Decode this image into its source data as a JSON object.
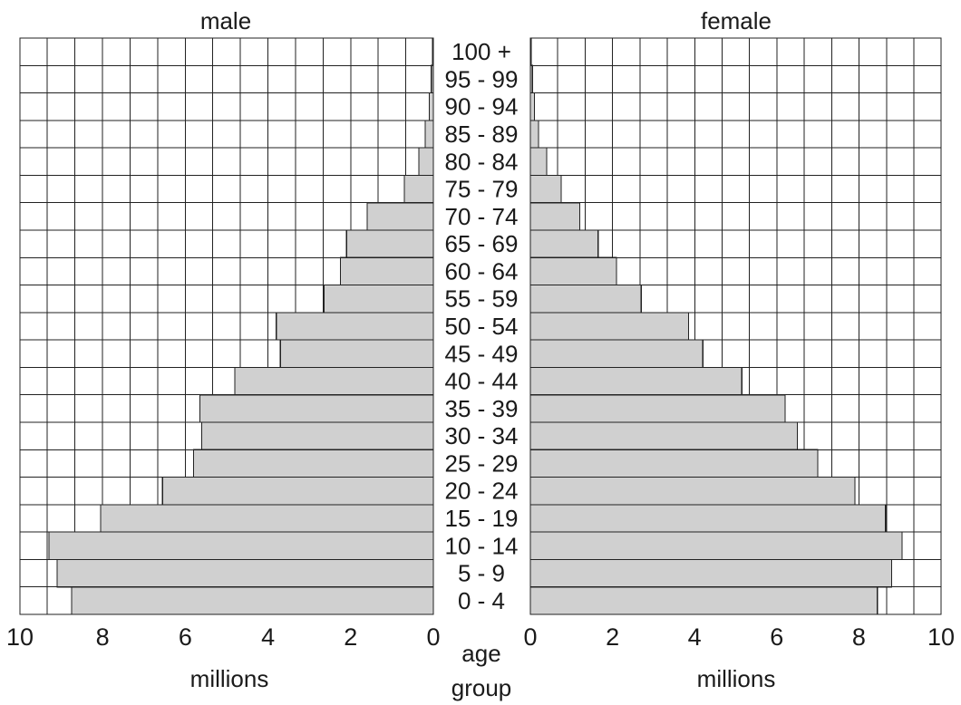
{
  "chart_data": {
    "type": "bar",
    "orientation": "horizontal",
    "style": "population-pyramid",
    "categories": [
      "0-4",
      "5-9",
      "10-14",
      "15-19",
      "20-24",
      "25-29",
      "30-34",
      "35-39",
      "40-44",
      "45-49",
      "50-54",
      "55-59",
      "60-64",
      "65-69",
      "70-74",
      "75-79",
      "80-84",
      "85-89",
      "90-94",
      "95-99",
      "100+"
    ],
    "category_labels": [
      "0 - 4",
      "5 - 9",
      "10 - 14",
      "15 - 19",
      "20 - 24",
      "25 - 29",
      "30 - 34",
      "35 - 39",
      "40 - 44",
      "45 - 49",
      "50 - 54",
      "55 - 59",
      "60 - 64",
      "65 - 69",
      "70 - 74",
      "75 - 79",
      "80 - 84",
      "85 - 89",
      "90 - 94",
      "95 - 99",
      "100 +"
    ],
    "series": [
      {
        "name": "male",
        "values": [
          8.75,
          9.1,
          9.3,
          8.05,
          6.55,
          5.8,
          5.6,
          5.65,
          4.8,
          3.7,
          3.8,
          2.65,
          2.25,
          2.1,
          1.6,
          0.7,
          0.35,
          0.2,
          0.1,
          0.05,
          0.02
        ]
      },
      {
        "name": "female",
        "values": [
          8.45,
          8.8,
          9.05,
          8.65,
          7.9,
          7.0,
          6.5,
          6.2,
          5.15,
          4.2,
          3.85,
          2.7,
          2.1,
          1.65,
          1.2,
          0.75,
          0.4,
          0.2,
          0.1,
          0.05,
          0.02
        ]
      }
    ],
    "xlabel": "millions",
    "category_axis_label": [
      "age",
      "group"
    ],
    "xlim": [
      0,
      10
    ],
    "x_ticks": [
      0,
      2,
      4,
      6,
      8,
      10
    ],
    "x_tick_labels": [
      "0",
      "2",
      "4",
      "6",
      "8",
      "10"
    ],
    "grid": true,
    "bar_color": "#d0d0d0",
    "line_color": "#222222"
  }
}
